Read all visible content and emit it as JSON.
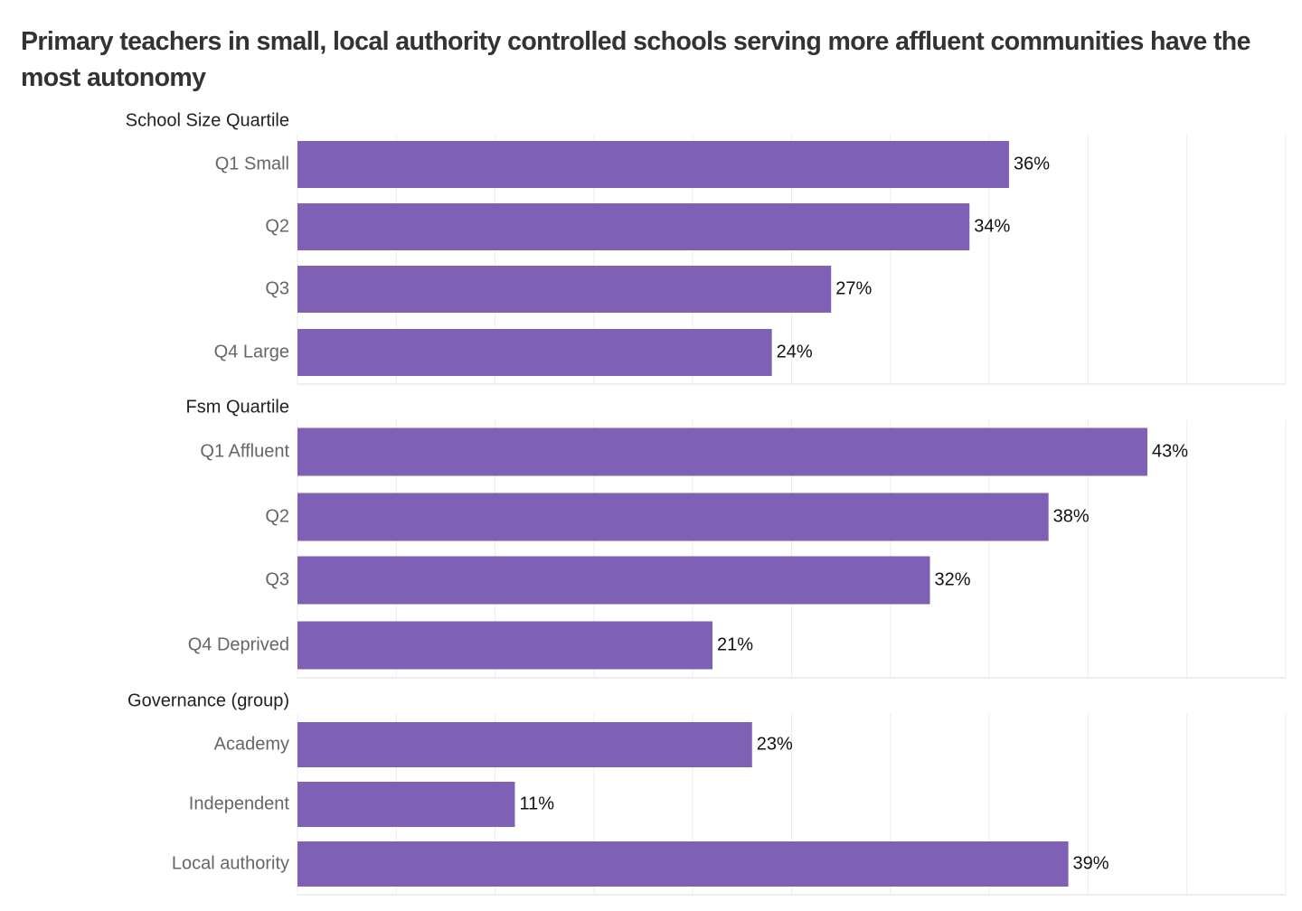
{
  "chart_data": {
    "type": "bar",
    "orientation": "horizontal",
    "title": "Primary teachers in small, local authority controlled schools serving more affluent communities have the most autonomy",
    "xlabel": "",
    "ylabel": "",
    "xlim": [
      0,
      50
    ],
    "x_gridlines_every": 5,
    "x_tick_labels_shown": false,
    "grid": true,
    "value_format": "percent",
    "bar_color": "#7e61b5",
    "panels": [
      {
        "name": "School Size Quartile",
        "categories": [
          "Q1 Small",
          "Q2",
          "Q3",
          "Q4 Large"
        ],
        "values": [
          36,
          34,
          27,
          24
        ],
        "labels": [
          "36%",
          "34%",
          "27%",
          "24%"
        ]
      },
      {
        "name": "Fsm Quartile",
        "categories": [
          "Q1 Affluent",
          "Q2",
          "Q3",
          "Q4 Deprived"
        ],
        "values": [
          43,
          38,
          32,
          21
        ],
        "labels": [
          "43%",
          "38%",
          "32%",
          "21%"
        ]
      },
      {
        "name": "Governance (group)",
        "categories": [
          "Academy",
          "Independent",
          "Local authority"
        ],
        "values": [
          23,
          11,
          39
        ],
        "labels": [
          "23%",
          "11%",
          "39%"
        ]
      }
    ]
  }
}
